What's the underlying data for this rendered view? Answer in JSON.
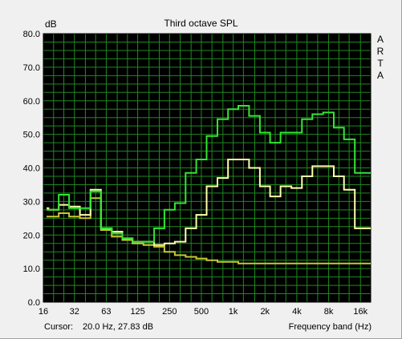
{
  "chart_data": {
    "type": "line",
    "title": "Third octave SPL",
    "ylabel": "dB",
    "xlabel": "Frequency band (Hz)",
    "ylim": [
      0,
      80
    ],
    "yticks": [
      "0.0",
      "10.0",
      "20.0",
      "30.0",
      "40.0",
      "50.0",
      "60.0",
      "70.0",
      "80.0"
    ],
    "xticks": [
      "16",
      "32",
      "63",
      "125",
      "250",
      "500",
      "1k",
      "2k",
      "4k",
      "8k",
      "16k"
    ],
    "side_label": [
      "A",
      "R",
      "T",
      "A"
    ],
    "grid": true,
    "colors": {
      "background": "#000000",
      "grid": "#1f8a1f",
      "green": "#33e633",
      "white": "#ffffaa",
      "yellow": "#c8c832"
    },
    "bands_hz": [
      16,
      20,
      25,
      31.5,
      40,
      50,
      63,
      80,
      100,
      125,
      160,
      200,
      250,
      315,
      400,
      500,
      630,
      800,
      1000,
      1250,
      1600,
      2000,
      2500,
      3150,
      4000,
      5000,
      6300,
      8000,
      10000,
      12500,
      16000,
      20000
    ],
    "series": [
      {
        "key": "green",
        "values": [
          27.5,
          27.5,
          32,
          28,
          28,
          33,
          22,
          20.5,
          19,
          18,
          18,
          22,
          27.5,
          29.5,
          38.5,
          42.5,
          49.5,
          54.5,
          57.5,
          58.5,
          55.5,
          50.5,
          47.5,
          50.5,
          50.5,
          54.5,
          56,
          56.5,
          52,
          48.5,
          38.5,
          38.5
        ]
      },
      {
        "key": "white",
        "values": [
          28,
          27.5,
          29,
          28.5,
          26,
          33.5,
          22,
          21,
          19,
          18,
          18,
          17,
          17.5,
          18,
          22,
          26,
          34.5,
          37,
          42.5,
          42.5,
          40,
          34.5,
          31.5,
          34.5,
          34,
          37.5,
          40.5,
          40.5,
          37.5,
          33.5,
          22,
          22
        ]
      },
      {
        "key": "yellow",
        "values": [
          25.5,
          25.5,
          26.5,
          25.5,
          25,
          31,
          21.5,
          19.5,
          18.5,
          17.5,
          17,
          16.5,
          15,
          14,
          13.5,
          13,
          12.5,
          12,
          12,
          11.5,
          11.5,
          11.5,
          11.5,
          11.5,
          11.5,
          11.5,
          11.5,
          11.5,
          11.5,
          11.5,
          11.5,
          11.5
        ]
      }
    ]
  },
  "status": {
    "cursor_label": "Cursor:",
    "cursor_value": "20.0 Hz, 27.83 dB"
  }
}
